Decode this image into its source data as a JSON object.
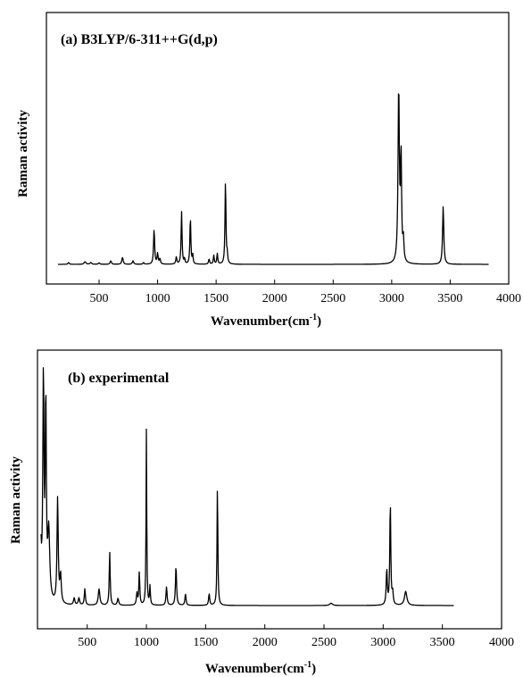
{
  "chart_data": [
    {
      "type": "line",
      "title": "(a) B3LYP/6-311++G(d,p)",
      "xlabel": "Wavenumber(cm",
      "xlabel_sup": "-1",
      "xlabel_close": ")",
      "ylabel": "Raman activity",
      "xlim": [
        50,
        4000
      ],
      "xticks": [
        "500",
        "1000",
        "1500",
        "2000",
        "2500",
        "3000",
        "3500",
        "4000"
      ],
      "series": [
        {
          "baseline_end": 3830,
          "peaks": [
            [
              240,
              0.01,
              10
            ],
            [
              380,
              0.015,
              14
            ],
            [
              430,
              0.01,
              12
            ],
            [
              500,
              0.008,
              12
            ],
            [
              600,
              0.02,
              10
            ],
            [
              700,
              0.04,
              10
            ],
            [
              790,
              0.02,
              10
            ],
            [
              880,
              0.01,
              8
            ],
            [
              970,
              0.2,
              8
            ],
            [
              1000,
              0.06,
              8
            ],
            [
              1020,
              0.03,
              8
            ],
            [
              1160,
              0.04,
              8
            ],
            [
              1205,
              0.3,
              7
            ],
            [
              1230,
              0.03,
              6
            ],
            [
              1280,
              0.27,
              7
            ],
            [
              1300,
              0.05,
              6
            ],
            [
              1440,
              0.03,
              8
            ],
            [
              1480,
              0.05,
              7
            ],
            [
              1510,
              0.06,
              7
            ],
            [
              1580,
              0.48,
              7
            ],
            [
              1595,
              0.05,
              6
            ],
            [
              3060,
              1.0,
              10
            ],
            [
              3080,
              0.6,
              8
            ],
            [
              3100,
              0.12,
              8
            ],
            [
              3440,
              0.33,
              9
            ]
          ]
        }
      ]
    },
    {
      "type": "line",
      "title": "(b) experimental",
      "xlabel": "Wavenumber(cm",
      "xlabel_sup": "-1",
      "xlabel_close": ")",
      "ylabel": "Raman activity",
      "xlim": [
        80,
        4000
      ],
      "xticks": [
        "500",
        "1000",
        "1500",
        "2000",
        "2500",
        "3000",
        "3500",
        "4000"
      ],
      "series": [
        {
          "baseline_end": 3600,
          "peaks": [
            [
              100,
              0.55,
              12
            ],
            [
              130,
              1.0,
              8
            ],
            [
              150,
              0.85,
              8
            ],
            [
              175,
              0.3,
              15
            ],
            [
              250,
              0.45,
              9
            ],
            [
              275,
              0.12,
              10
            ],
            [
              390,
              0.03,
              10
            ],
            [
              430,
              0.03,
              10
            ],
            [
              480,
              0.07,
              8
            ],
            [
              600,
              0.07,
              12
            ],
            [
              690,
              0.23,
              7
            ],
            [
              760,
              0.03,
              10
            ],
            [
              920,
              0.05,
              8
            ],
            [
              940,
              0.14,
              7
            ],
            [
              1000,
              0.76,
              5
            ],
            [
              1030,
              0.08,
              6
            ],
            [
              1170,
              0.08,
              8
            ],
            [
              1250,
              0.17,
              8
            ],
            [
              1330,
              0.05,
              8
            ],
            [
              1530,
              0.05,
              8
            ],
            [
              1600,
              0.52,
              6
            ],
            [
              2560,
              0.01,
              20
            ],
            [
              3030,
              0.15,
              8
            ],
            [
              3060,
              0.45,
              7
            ],
            [
              3080,
              0.05,
              8
            ],
            [
              3190,
              0.06,
              18
            ]
          ]
        }
      ]
    }
  ]
}
